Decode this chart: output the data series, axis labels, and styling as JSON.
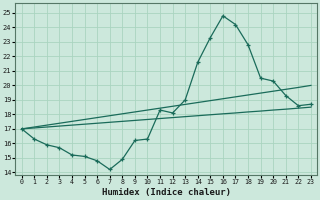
{
  "xlabel": "Humidex (Indice chaleur)",
  "background_color": "#cce8dc",
  "grid_color": "#aad4c0",
  "line_color": "#1a6b5a",
  "xlim": [
    -0.5,
    23.5
  ],
  "ylim": [
    13.8,
    25.7
  ],
  "yticks": [
    14,
    15,
    16,
    17,
    18,
    19,
    20,
    21,
    22,
    23,
    24,
    25
  ],
  "xticks": [
    0,
    1,
    2,
    3,
    4,
    5,
    6,
    7,
    8,
    9,
    10,
    11,
    12,
    13,
    14,
    15,
    16,
    17,
    18,
    19,
    20,
    21,
    22,
    23
  ],
  "line1_x": [
    0,
    1,
    2,
    3,
    4,
    5,
    6,
    7,
    8,
    9,
    10,
    11,
    12,
    13,
    14,
    15,
    16,
    17,
    18,
    19,
    20,
    21,
    22,
    23
  ],
  "line1_y": [
    17.0,
    16.3,
    15.9,
    15.7,
    15.2,
    15.1,
    14.8,
    14.2,
    14.9,
    16.2,
    16.3,
    18.3,
    18.1,
    19.0,
    21.6,
    23.3,
    24.8,
    24.2,
    22.8,
    20.5,
    20.3,
    19.3,
    18.6,
    18.7
  ],
  "line2_x": [
    0,
    1,
    2,
    3,
    4,
    5,
    6,
    7,
    8,
    9,
    10,
    11,
    12,
    13,
    14,
    15,
    16,
    17,
    18,
    19,
    20,
    21,
    22,
    23
  ],
  "line2_y": [
    17.0,
    17.065,
    17.13,
    17.195,
    17.26,
    17.325,
    17.39,
    17.456,
    17.52,
    17.585,
    17.65,
    17.715,
    17.78,
    17.845,
    17.91,
    17.975,
    18.04,
    18.1,
    18.17,
    18.23,
    18.3,
    18.36,
    18.43,
    18.5
  ],
  "line3_x": [
    0,
    1,
    2,
    3,
    4,
    5,
    6,
    7,
    8,
    9,
    10,
    11,
    12,
    13,
    14,
    15,
    16,
    17,
    18,
    19,
    20,
    21,
    22,
    23
  ],
  "line3_y": [
    17.0,
    17.13,
    17.26,
    17.39,
    17.52,
    17.65,
    17.78,
    17.91,
    18.04,
    18.17,
    18.3,
    18.43,
    18.56,
    18.69,
    18.82,
    18.95,
    19.08,
    19.21,
    19.34,
    19.47,
    19.6,
    19.73,
    19.86,
    20.0
  ]
}
